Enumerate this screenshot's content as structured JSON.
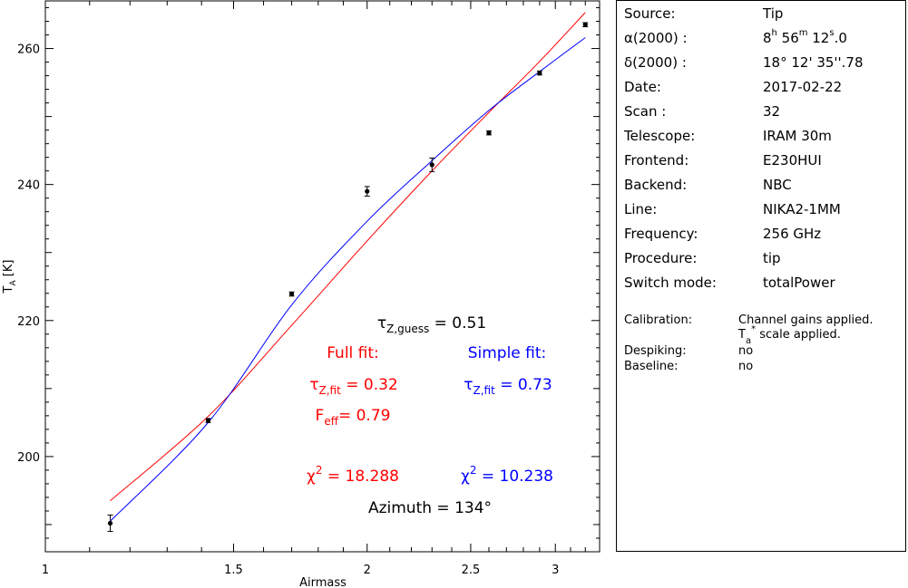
{
  "chart_data": {
    "type": "scatter",
    "title": "",
    "xlabel": "Airmass",
    "ylabel_main": "T",
    "ylabel_sub": "A",
    "ylabel_unit": " [K]",
    "x_scale": "log",
    "xlim": [
      1.0,
      3.3
    ],
    "ylim": [
      186,
      267
    ],
    "x_ticks": [
      1,
      1.5,
      2,
      2.5,
      3
    ],
    "x_tick_labels": [
      "1",
      "1.5",
      "2",
      "2.5",
      "3"
    ],
    "y_ticks": [
      200,
      220,
      240,
      260
    ],
    "y_tick_labels": [
      "200",
      "220",
      "240",
      "260"
    ],
    "points": {
      "x": [
        1.15,
        1.42,
        1.7,
        2.0,
        2.3,
        2.6,
        2.9,
        3.2
      ],
      "y": [
        190.2,
        205.3,
        223.9,
        239.0,
        242.9,
        247.6,
        256.4,
        263.5
      ],
      "err": [
        1.2,
        0.3,
        0.3,
        0.7,
        1.0,
        0.3,
        0.3,
        0.3
      ]
    },
    "series": [
      {
        "name": "Full fit",
        "color": "#ff0000",
        "x": [
          1.15,
          1.42,
          1.7,
          2.0,
          2.3,
          2.6,
          2.9,
          3.2
        ],
        "y": [
          193.5,
          205.9,
          219.3,
          231.7,
          242.0,
          250.6,
          258.1,
          265.3
        ]
      },
      {
        "name": "Simple fit",
        "color": "#0000ff",
        "x": [
          1.15,
          1.42,
          1.7,
          2.0,
          2.3,
          2.6,
          2.9,
          3.2
        ],
        "y": [
          190.5,
          205.0,
          222.3,
          234.6,
          243.5,
          250.9,
          256.6,
          261.6
        ]
      }
    ]
  },
  "annotations": {
    "tau_guess": {
      "sym": "τ",
      "sub": "Z,guess",
      "rest": " = 0.51"
    },
    "full_fit_title": "Full fit:",
    "simple_fit_title": "Simple fit:",
    "tau_full": {
      "sym": "τ",
      "sub": "Z,fit",
      "rest": " = 0.32"
    },
    "tau_simple": {
      "sym": "τ",
      "sub": "Z,fit",
      "rest": " = 0.73"
    },
    "feff": {
      "sym": "F",
      "sub": "eff",
      "rest": "= 0.79"
    },
    "chi_full": {
      "sym": "χ",
      "sup": "2",
      "rest": " = 18.288"
    },
    "chi_simple": {
      "sym": "χ",
      "sup": "2",
      "rest": " = 10.238"
    },
    "azimuth": "Azimuth = 134°"
  },
  "info": {
    "source_label": "Source:",
    "source": "Tip",
    "ra_label": "α(2000) :",
    "ra": {
      "h": "8",
      "h_u": "h",
      "m": " 56",
      "m_u": "m",
      "s": " 12",
      "s_u": "s",
      "frac": ".0"
    },
    "dec_label": "δ(2000) :",
    "dec": "18° 12' 35''.78",
    "date_label": "Date:",
    "date": "2017-02-22",
    "scan_label": "Scan :",
    "scan": "32",
    "telescope_label": "Telescope:",
    "telescope": "IRAM 30m",
    "frontend_label": "Frontend:",
    "frontend": "E230HUI",
    "backend_label": "Backend:",
    "backend": "NBC",
    "line_label": "Line:",
    "line": "NIKA2-1MM",
    "frequency_label": "Frequency:",
    "frequency": "256 GHz",
    "procedure_label": "Procedure:",
    "procedure": "tip",
    "switch_label": "Switch mode:",
    "switch": "totalPower"
  },
  "calibration": {
    "calibration_label": "Calibration:",
    "calibration_1": "Channel gains applied.",
    "calibration_2_pre": "T",
    "calibration_2_sub": "a",
    "calibration_2_sup": "*",
    "calibration_2_post": " scale applied.",
    "despiking_label": "Despiking:",
    "despiking": "no",
    "baseline_label": "Baseline:",
    "baseline": "no"
  }
}
